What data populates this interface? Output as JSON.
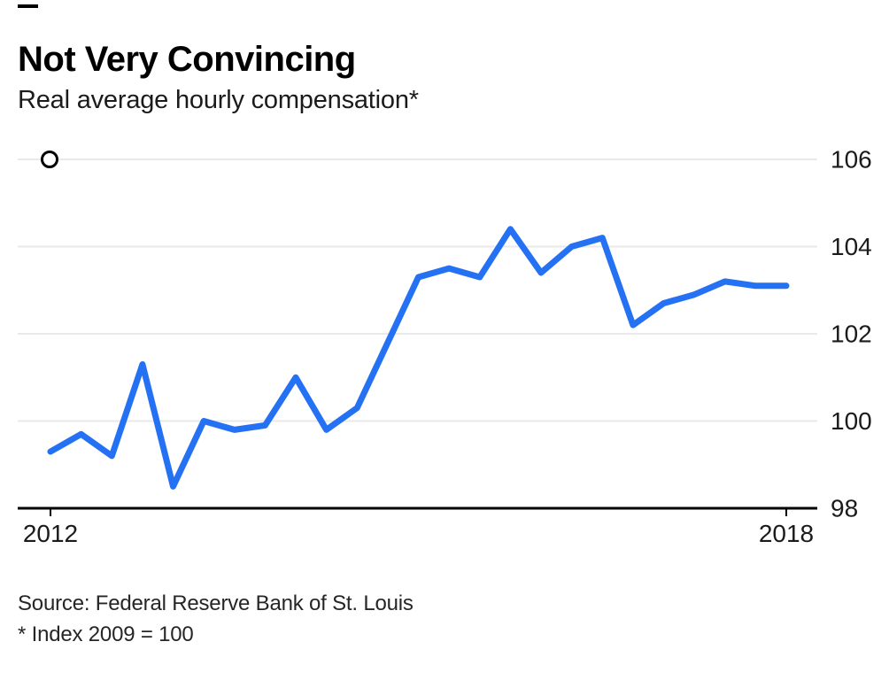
{
  "page": {
    "title": "Not Very Convincing",
    "subtitle": "Real average hourly compensation*",
    "source": "Source: Federal Reserve Bank of St. Louis",
    "footnote": "* Index 2009 = 100"
  },
  "colors": {
    "line": "#2571f3",
    "grid": "#e9e9e9",
    "axis": "#000000",
    "tick_label": "#1b1b1b",
    "marker_stroke": "#000000",
    "marker_fill": "#ffffff"
  },
  "chart_data": {
    "type": "line",
    "title": "Not Very Convincing",
    "subtitle": "Real average hourly compensation*",
    "frequency": "quarterly",
    "xlim": [
      2012,
      2018
    ],
    "ylim": [
      98,
      106
    ],
    "grid": "horizontal-light",
    "y_axis_side": "right",
    "x_ticks": [
      {
        "x": 2012,
        "label": "2012"
      },
      {
        "x": 2018,
        "label": "2018"
      }
    ],
    "y_ticks": [
      {
        "v": 98,
        "label": "98"
      },
      {
        "v": 100,
        "label": "100"
      },
      {
        "v": 102,
        "label": "102"
      },
      {
        "v": 104,
        "label": "104"
      },
      {
        "v": 106,
        "label": "106"
      }
    ],
    "series": [
      {
        "name": "Real average hourly compensation (Index 2009 = 100)",
        "color": "#2571f3",
        "x": [
          2012.0,
          2012.25,
          2012.5,
          2012.75,
          2013.0,
          2013.25,
          2013.5,
          2013.75,
          2014.0,
          2014.25,
          2014.5,
          2014.75,
          2015.0,
          2015.25,
          2015.5,
          2015.75,
          2016.0,
          2016.25,
          2016.5,
          2016.75,
          2017.0,
          2017.25,
          2017.5,
          2017.75,
          2018.0
        ],
        "values": [
          99.3,
          99.7,
          99.2,
          101.3,
          98.5,
          100.0,
          99.8,
          99.9,
          101.0,
          99.8,
          100.3,
          101.8,
          103.3,
          103.5,
          103.3,
          104.4,
          103.4,
          104.0,
          104.2,
          102.2,
          102.7,
          102.9,
          103.2,
          103.1,
          103.1
        ]
      }
    ],
    "marker": {
      "x": 2012,
      "value": 106,
      "style": "open-circle"
    }
  }
}
